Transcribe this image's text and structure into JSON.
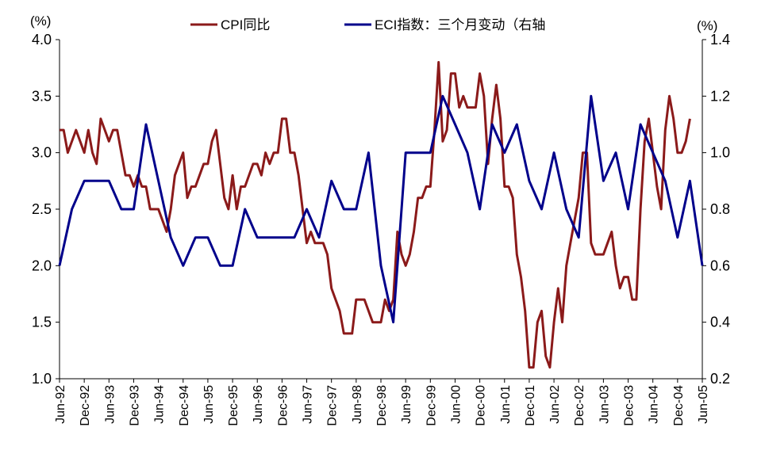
{
  "chart_data": {
    "type": "line",
    "title": "",
    "left_unit": "(%)",
    "right_unit": "(%)",
    "left_ylim": [
      1.0,
      4.0
    ],
    "right_ylim": [
      0.2,
      1.4
    ],
    "left_ticks": [
      "1.0",
      "1.5",
      "2.0",
      "2.5",
      "3.0",
      "3.5",
      "4.0"
    ],
    "right_ticks": [
      "0.2",
      "0.4",
      "0.6",
      "0.8",
      "1.0",
      "1.2",
      "1.4"
    ],
    "x_tick_labels": [
      "Jun-92",
      "Dec-92",
      "Jun-93",
      "Dec-93",
      "Jun-94",
      "Dec-94",
      "Jun-95",
      "Dec-95",
      "Jun-96",
      "Dec-96",
      "Jun-97",
      "Dec-97",
      "Jun-98",
      "Dec-98",
      "Jun-99",
      "Dec-99",
      "Jun-00",
      "Dec-00",
      "Jun-01",
      "Dec-01",
      "Jun-02",
      "Dec-02",
      "Jun-03",
      "Dec-03",
      "Jun-04",
      "Dec-04",
      "Jun-05"
    ],
    "x_start": "1992-06",
    "x_end": "2005-06",
    "grid": false,
    "legend_position": "top",
    "series": [
      {
        "name": "CPI同比",
        "axis": "left",
        "color": "#8B1A1A",
        "frequency": "monthly",
        "values": [
          3.2,
          3.2,
          3.0,
          3.1,
          3.2,
          3.1,
          3.0,
          3.2,
          3.0,
          2.9,
          3.3,
          3.2,
          3.1,
          3.2,
          3.2,
          3.0,
          2.8,
          2.8,
          2.7,
          2.8,
          2.7,
          2.7,
          2.5,
          2.5,
          2.5,
          2.4,
          2.3,
          2.5,
          2.8,
          2.9,
          3.0,
          2.6,
          2.7,
          2.7,
          2.8,
          2.9,
          2.9,
          3.1,
          3.2,
          2.9,
          2.6,
          2.5,
          2.8,
          2.5,
          2.7,
          2.7,
          2.8,
          2.9,
          2.9,
          2.8,
          3.0,
          2.9,
          3.0,
          3.0,
          3.3,
          3.3,
          3.0,
          3.0,
          2.8,
          2.5,
          2.2,
          2.3,
          2.2,
          2.2,
          2.2,
          2.1,
          1.8,
          1.7,
          1.6,
          1.4,
          1.4,
          1.4,
          1.7,
          1.7,
          1.7,
          1.6,
          1.5,
          1.5,
          1.5,
          1.7,
          1.6,
          1.7,
          2.3,
          2.1,
          2.0,
          2.1,
          2.3,
          2.6,
          2.6,
          2.7,
          2.7,
          3.2,
          3.8,
          3.1,
          3.2,
          3.7,
          3.7,
          3.4,
          3.5,
          3.4,
          3.4,
          3.4,
          3.7,
          3.5,
          2.9,
          3.3,
          3.6,
          3.3,
          2.7,
          2.7,
          2.6,
          2.1,
          1.9,
          1.6,
          1.1,
          1.1,
          1.5,
          1.6,
          1.2,
          1.1,
          1.5,
          1.8,
          1.5,
          2.0,
          2.2,
          2.4,
          2.6,
          3.0,
          3.0,
          2.2,
          2.1,
          2.1,
          2.1,
          2.2,
          2.3,
          2.0,
          1.8,
          1.9,
          1.9,
          1.7,
          1.7,
          2.5,
          3.1,
          3.3,
          3.0,
          2.7,
          2.5,
          3.2,
          3.5,
          3.3,
          3.0,
          3.0,
          3.1,
          3.3
        ]
      },
      {
        "name": "ECI指数：三个月变动（右轴",
        "axis": "right",
        "color": "#00008B",
        "frequency": "quarterly",
        "values": [
          0.6,
          0.8,
          0.9,
          0.9,
          0.9,
          0.8,
          0.8,
          1.1,
          0.9,
          0.7,
          0.6,
          0.7,
          0.7,
          0.6,
          0.6,
          0.8,
          0.7,
          0.7,
          0.7,
          0.7,
          0.8,
          0.7,
          0.9,
          0.8,
          0.8,
          1.0,
          0.6,
          0.4,
          1.0,
          1.0,
          1.0,
          1.2,
          1.1,
          1.0,
          0.8,
          1.1,
          1.0,
          1.1,
          0.9,
          0.8,
          1.0,
          0.8,
          0.7,
          1.2,
          0.9,
          1.0,
          0.8,
          1.1,
          1.0,
          0.9,
          0.7,
          0.9,
          0.6
        ]
      }
    ]
  }
}
